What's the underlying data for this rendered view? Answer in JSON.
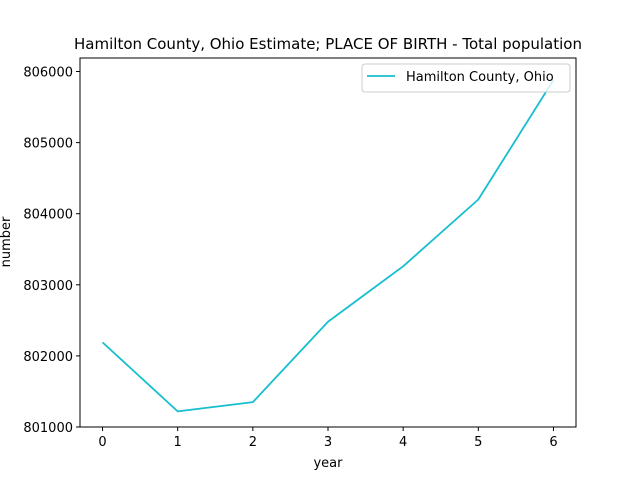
{
  "chart_data": {
    "type": "line",
    "title": "Hamilton County, Ohio Estimate; PLACE OF BIRTH - Total population",
    "xlabel": "year",
    "ylabel": "number",
    "x": [
      0,
      1,
      2,
      3,
      4,
      5,
      6
    ],
    "series": [
      {
        "name": "Hamilton County, Ohio",
        "values": [
          802190,
          801220,
          801350,
          802480,
          803260,
          804200,
          805880
        ],
        "color": "#17becf"
      }
    ],
    "xlim": [
      -0.3,
      6.3
    ],
    "ylim": [
      801000,
      806190
    ],
    "xticks": [
      0,
      1,
      2,
      3,
      4,
      5,
      6
    ],
    "yticks": [
      801000,
      802000,
      803000,
      804000,
      805000,
      806000
    ],
    "legend": "top-right",
    "grid": false
  }
}
